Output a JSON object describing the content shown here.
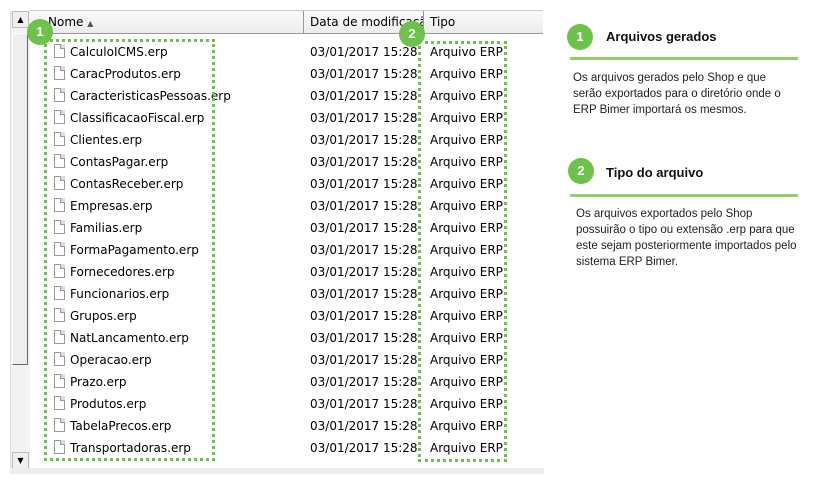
{
  "columns": {
    "name": "Nome",
    "date": "Data de modificação",
    "type": "Tipo"
  },
  "files": [
    {
      "name": "CalculoICMS.erp",
      "date": "03/01/2017 15:28",
      "type": "Arquivo ERP"
    },
    {
      "name": "CaracProdutos.erp",
      "date": "03/01/2017 15:28",
      "type": "Arquivo ERP"
    },
    {
      "name": "CaracteristicasPessoas.erp",
      "date": "03/01/2017 15:28",
      "type": "Arquivo ERP"
    },
    {
      "name": "ClassificacaoFiscal.erp",
      "date": "03/01/2017 15:28",
      "type": "Arquivo ERP"
    },
    {
      "name": "Clientes.erp",
      "date": "03/01/2017 15:28",
      "type": "Arquivo ERP"
    },
    {
      "name": "ContasPagar.erp",
      "date": "03/01/2017 15:28",
      "type": "Arquivo ERP"
    },
    {
      "name": "ContasReceber.erp",
      "date": "03/01/2017 15:28",
      "type": "Arquivo ERP"
    },
    {
      "name": "Empresas.erp",
      "date": "03/01/2017 15:28",
      "type": "Arquivo ERP"
    },
    {
      "name": "Familias.erp",
      "date": "03/01/2017 15:28",
      "type": "Arquivo ERP"
    },
    {
      "name": "FormaPagamento.erp",
      "date": "03/01/2017 15:28",
      "type": "Arquivo ERP"
    },
    {
      "name": "Fornecedores.erp",
      "date": "03/01/2017 15:28",
      "type": "Arquivo ERP"
    },
    {
      "name": "Funcionarios.erp",
      "date": "03/01/2017 15:28",
      "type": "Arquivo ERP"
    },
    {
      "name": "Grupos.erp",
      "date": "03/01/2017 15:28",
      "type": "Arquivo ERP"
    },
    {
      "name": "NatLancamento.erp",
      "date": "03/01/2017 15:28",
      "type": "Arquivo ERP"
    },
    {
      "name": "Operacao.erp",
      "date": "03/01/2017 15:28",
      "type": "Arquivo ERP"
    },
    {
      "name": "Prazo.erp",
      "date": "03/01/2017 15:28",
      "type": "Arquivo ERP"
    },
    {
      "name": "Produtos.erp",
      "date": "03/01/2017 15:28",
      "type": "Arquivo ERP"
    },
    {
      "name": "TabelaPrecos.erp",
      "date": "03/01/2017 15:28",
      "type": "Arquivo ERP"
    },
    {
      "name": "Transportadoras.erp",
      "date": "03/01/2017 15:28",
      "type": "Arquivo ERP"
    }
  ],
  "callouts": [
    {
      "number": "1",
      "title": "Arquivos gerados",
      "text": "Os arquivos gerados pelo Shop e que serão exportados para o diretório onde o ERP Bimer importará os mesmos."
    },
    {
      "number": "2",
      "title": "Tipo do arquivo",
      "text": "Os arquivos exportados pelo Shop possuirão o tipo ou extensão .erp para que este sejam posteriormente importados pelo sistema ERP Bimer."
    }
  ],
  "accent": "#6cc24a"
}
